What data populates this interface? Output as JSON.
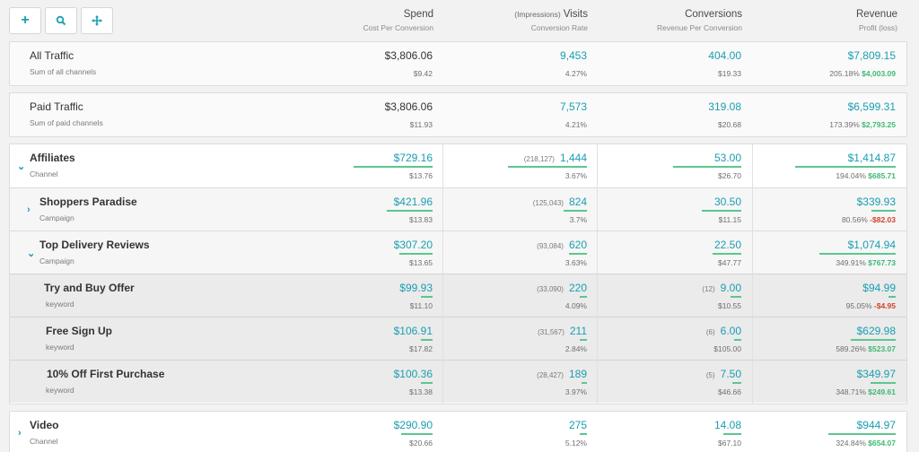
{
  "toolbar": {
    "add_label": "+"
  },
  "columns": [
    {
      "title": "Spend",
      "pre": "",
      "sub": "Cost Per Conversion"
    },
    {
      "title": "Visits",
      "pre": "(Impressions)",
      "sub": "Conversion Rate"
    },
    {
      "title": "Conversions",
      "pre": "",
      "sub": "Revenue Per Conversion"
    },
    {
      "title": "Revenue",
      "pre": "",
      "sub": "Profit (loss)"
    }
  ],
  "rows": {
    "all": {
      "name": "All Traffic",
      "sub": "Sum of all channels",
      "spend": "$3,806.06",
      "cpc": "$9.42",
      "visits": "9,453",
      "rate": "4.27%",
      "conv": "404.00",
      "rpc": "$19.33",
      "rev": "$7,809.15",
      "roi": "205.18%",
      "profit": "$4,003.09"
    },
    "paid": {
      "name": "Paid Traffic",
      "sub": "Sum of paid channels",
      "spend": "$3,806.06",
      "cpc": "$11.93",
      "visits": "7,573",
      "rate": "4.21%",
      "conv": "319.08",
      "rpc": "$20.68",
      "rev": "$6,599.31",
      "roi": "173.39%",
      "profit": "$2,793.25"
    },
    "affiliates": {
      "name": "Affiliates",
      "sub": "Channel",
      "spend": "$729.16",
      "cpc": "$13.76",
      "imp": "(218,127)",
      "visits": "1,444",
      "rate": "3.67%",
      "conv": "53.00",
      "rpc": "$26.70",
      "rev": "$1,414.87",
      "roi": "194.04%",
      "profit": "$685.71"
    },
    "shoppers": {
      "name": "Shoppers Paradise",
      "sub": "Campaign",
      "spend": "$421.96",
      "cpc": "$13.83",
      "imp": "(125,043)",
      "visits": "824",
      "rate": "3.7%",
      "conv": "30.50",
      "rpc": "$11.15",
      "rev": "$339.93",
      "roi": "80.56%",
      "profit": "-$82.03"
    },
    "topdelivery": {
      "name": "Top Delivery Reviews",
      "sub": "Campaign",
      "spend": "$307.20",
      "cpc": "$13.65",
      "imp": "(93,084)",
      "visits": "620",
      "rate": "3.63%",
      "conv": "22.50",
      "rpc": "$47.77",
      "rev": "$1,074.94",
      "roi": "349.91%",
      "profit": "$767.73"
    },
    "trybuy": {
      "name": "Try and Buy Offer",
      "sub": "keyword",
      "spend": "$99.93",
      "cpc": "$11.10",
      "imp": "(33,090)",
      "visits": "220",
      "rate": "4.09%",
      "convpre": "(12)",
      "conv": "9.00",
      "rpc": "$10.55",
      "rev": "$94.99",
      "roi": "95.05%",
      "profit": "-$4.95"
    },
    "freesign": {
      "name": "Free Sign Up",
      "sub": "keyword",
      "spend": "$106.91",
      "cpc": "$17.82",
      "imp": "(31,567)",
      "visits": "211",
      "rate": "2.84%",
      "convpre": "(6)",
      "conv": "6.00",
      "rpc": "$105.00",
      "rev": "$629.98",
      "roi": "589.26%",
      "profit": "$523.07"
    },
    "tenoff": {
      "name": "10% Off First Purchase",
      "sub": "keyword",
      "spend": "$100.36",
      "cpc": "$13.38",
      "imp": "(28,427)",
      "visits": "189",
      "rate": "3.97%",
      "convpre": "(5)",
      "conv": "7.50",
      "rpc": "$46.66",
      "rev": "$349.97",
      "roi": "348.71%",
      "profit": "$249.61"
    },
    "video": {
      "name": "Video",
      "sub": "Channel",
      "spend": "$290.90",
      "cpc": "$20.66",
      "visits": "275",
      "rate": "5.12%",
      "conv": "14.08",
      "rpc": "$67.10",
      "rev": "$944.97",
      "roi": "324.84%",
      "profit": "$654.07"
    }
  }
}
